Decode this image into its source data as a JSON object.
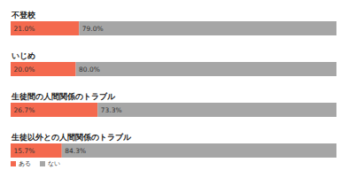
{
  "chart_data": {
    "type": "bar",
    "orientation": "horizontal",
    "stacked": true,
    "data_labels": true,
    "tick_labels": "y",
    "legend": "bottom-left",
    "categories": [
      "不登校",
      "いじめ",
      "生徒間の人間関係のトラブル",
      "生徒以外との人間関係のトラブル"
    ],
    "series": [
      {
        "name": "ある",
        "color": "#f4694e",
        "values": [
          21.0,
          20.0,
          26.7,
          15.7
        ],
        "value_labels": [
          "21.0%",
          "20.0%",
          "26.7%",
          "15.7%"
        ]
      },
      {
        "name": "ない",
        "color": "#a6a6a6",
        "values": [
          79.0,
          80.0,
          73.3,
          84.3
        ],
        "value_labels": [
          "79.0%",
          "80.0%",
          "73.3%",
          "84.3%"
        ]
      }
    ],
    "xlim": [
      0,
      100
    ]
  }
}
